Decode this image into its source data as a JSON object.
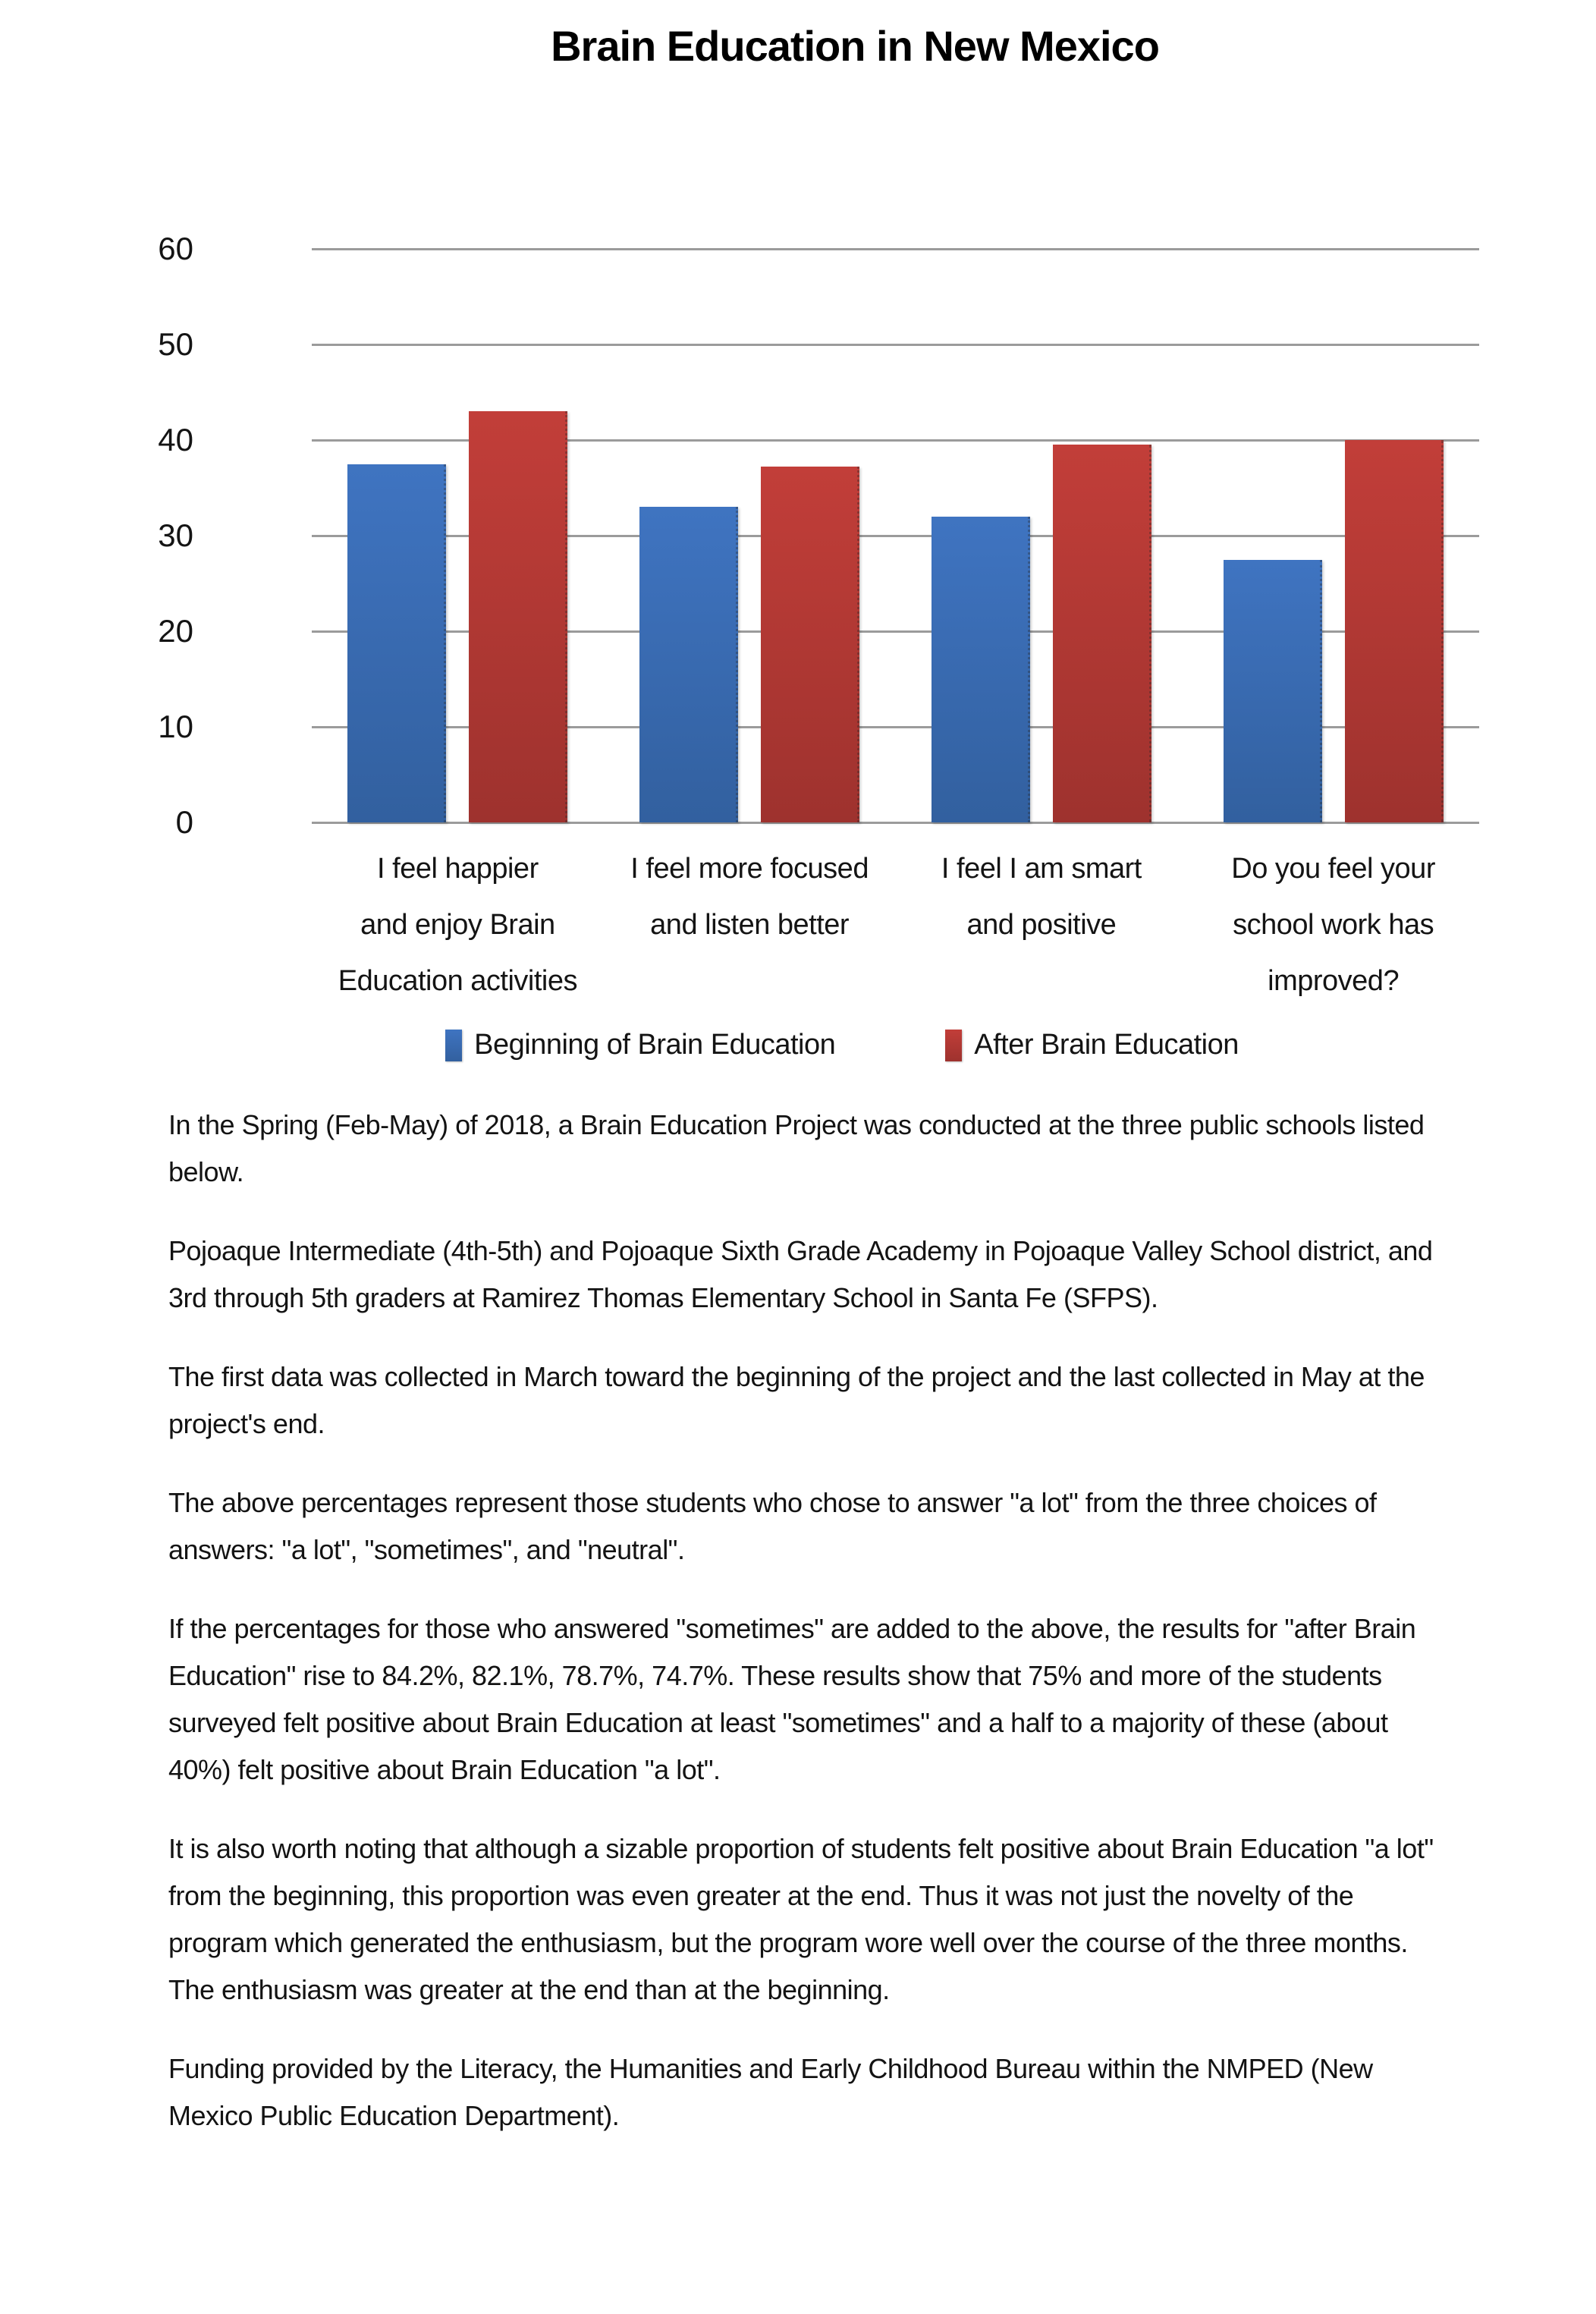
{
  "chart_data": {
    "type": "bar",
    "title": "Brain Education in New Mexico",
    "categories": [
      "I feel happier\nand enjoy Brain\nEducation activities",
      "I feel more focused\nand listen better",
      "I feel I am smart\nand positive",
      "Do you feel your\nschool work has\nimproved?"
    ],
    "series": [
      {
        "name": "Beginning of Brain Education",
        "values": [
          37.5,
          33,
          32,
          27.5
        ],
        "color": "#3f74c1",
        "color_dark": "#32609f"
      },
      {
        "name": "After Brain Education",
        "values": [
          43,
          37.2,
          39.5,
          40
        ],
        "color": "#c23e39",
        "color_dark": "#9e322e"
      }
    ],
    "xlabel": "",
    "ylabel": "",
    "ylim": [
      0,
      60
    ],
    "yticks": [
      60,
      50,
      40,
      30,
      20,
      10,
      0
    ],
    "grid": "horizontal",
    "legend_position": "bottom",
    "gridline_color": "#9b9b9b"
  },
  "body": {
    "paragraphs": [
      "In the Spring (Feb-May) of 2018, a Brain Education Project was conducted at the three public schools listed below.",
      "Pojoaque Intermediate (4th-5th) and Pojoaque Sixth Grade Academy in Pojoaque Valley School district, and 3rd through 5th graders at Ramirez Thomas Elementary School in Santa Fe (SFPS).",
      "The first data was collected in March toward the beginning of the project and the last collected in May at the project's end.",
      "The above percentages represent those students who chose to answer \"a lot\" from the three choices of answers: \"a lot\", \"sometimes\", and \"neutral\".",
      "If the percentages for those who answered \"sometimes\" are added to the above, the results for \"after Brain Education\" rise to 84.2%, 82.1%, 78.7%, 74.7%. These results show that 75% and more of the students surveyed felt positive about Brain Education at least \"sometimes\" and a half to a majority of these (about 40%) felt positive about Brain Education \"a lot\".",
      "It is also worth noting that although a sizable proportion of students felt positive about Brain Education \"a lot\" from the beginning, this proportion was even greater at the end. Thus it was not just the novelty of the program which generated the enthusiasm, but the program wore well over the course of the three months. The enthusiasm was greater at the end than at the beginning.",
      "Funding provided by the Literacy, the Humanities and Early Childhood Bureau within the NMPED (New Mexico Public Education Department)."
    ]
  }
}
